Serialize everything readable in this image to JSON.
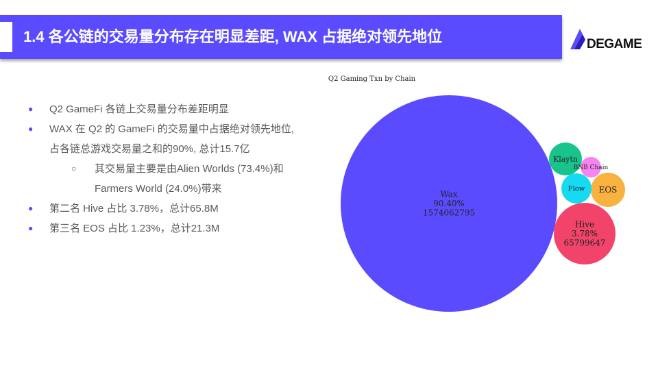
{
  "header": {
    "title": "1.4  各公链的交易量分布存在明显差距, WAX 占据绝对领先地位",
    "brand_color": "#5b4bff"
  },
  "logo": {
    "text": "DEGAME"
  },
  "bullets": [
    {
      "level": 1,
      "lines": [
        "Q2 GameFi 各链上交易量分布差距明显"
      ]
    },
    {
      "level": 1,
      "lines": [
        "WAX 在 Q2 的 GameFi 的交易量中占据绝对领先地位,",
        "占各链总游戏交易量之和的90%, 总计15.7亿"
      ]
    },
    {
      "level": 2,
      "lines": [
        "其交易量主要是由Alien Worlds (73.4%)和",
        "Farmers World (24.0%)带来"
      ]
    },
    {
      "level": 1,
      "lines": [
        "第二名 Hive 占比 3.78%，总计65.8M"
      ]
    },
    {
      "level": 1,
      "lines": [
        "第三名 EOS 占比 1.23%，总计21.3M"
      ]
    }
  ],
  "chart_data": {
    "type": "bubble",
    "title": "Q2 Gaming Txn by Chain",
    "series": [
      {
        "name": "Wax",
        "share": "90.40%",
        "value": 1574062795,
        "color": "#5b4bff"
      },
      {
        "name": "Hive",
        "share": "3.78%",
        "value": 65799647,
        "color": "#f2446b"
      },
      {
        "name": "EOS",
        "share": "",
        "value": null,
        "color": "#f9b140"
      },
      {
        "name": "Flow",
        "share": "",
        "value": null,
        "color": "#16d9f2"
      },
      {
        "name": "Klaytn",
        "share": "",
        "value": null,
        "color": "#19c48c"
      },
      {
        "name": "BNB Chain",
        "share": "",
        "value": null,
        "color": "#f584f0"
      }
    ]
  }
}
